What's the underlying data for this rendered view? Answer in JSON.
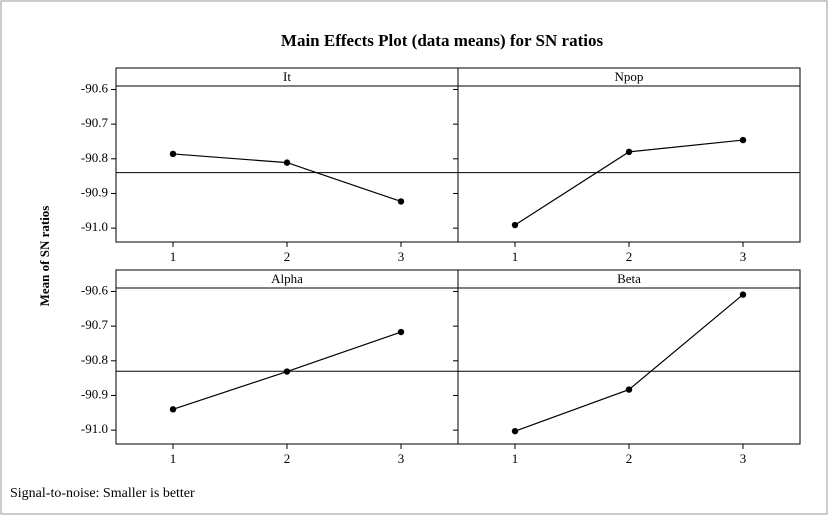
{
  "title": "Main Effects Plot (data means) for SN ratios",
  "y_label": "Mean of SN ratios",
  "footnote": "Signal-to-noise: Smaller is better",
  "chart_data": [
    {
      "type": "line",
      "title": "It",
      "categories": [
        "1",
        "2",
        "3"
      ],
      "values": [
        -90.786,
        -90.811,
        -90.923
      ],
      "reference_line": -90.84,
      "color": "#000000",
      "ylim": [
        -91.04,
        -90.59
      ],
      "yticks": [
        {
          "value": -91,
          "label": "-91.0"
        },
        -90.9,
        -90.8,
        -90.7,
        -90.6
      ]
    },
    {
      "type": "line",
      "title": "Npop",
      "categories": [
        "1",
        "2",
        "3"
      ],
      "values": [
        -90.991,
        -90.78,
        -90.746
      ],
      "reference_line": -90.84,
      "color": "#000000",
      "ylim": [
        -91.04,
        -90.59
      ],
      "yticks": [
        -91,
        -90.9,
        -90.8,
        -90.7,
        -90.6
      ]
    },
    {
      "type": "line",
      "title": "Alpha",
      "categories": [
        "1",
        "2",
        "3"
      ],
      "values": [
        -90.94,
        -90.831,
        -90.717
      ],
      "reference_line": -90.83,
      "color": "#000000",
      "ylim": [
        -91.04,
        -90.59
      ],
      "yticks": [
        {
          "value": -91,
          "label": "-91.0"
        },
        -90.9,
        -90.8,
        -90.7,
        -90.6
      ]
    },
    {
      "type": "line",
      "title": "Beta",
      "categories": [
        "1",
        "2",
        "3"
      ],
      "values": [
        -91.003,
        -90.883,
        -90.609
      ],
      "reference_line": -90.83,
      "color": "#000000",
      "ylim": [
        -91.04,
        -90.59
      ],
      "yticks": [
        -91,
        -90.9,
        -90.8,
        -90.7,
        -90.6
      ]
    }
  ]
}
